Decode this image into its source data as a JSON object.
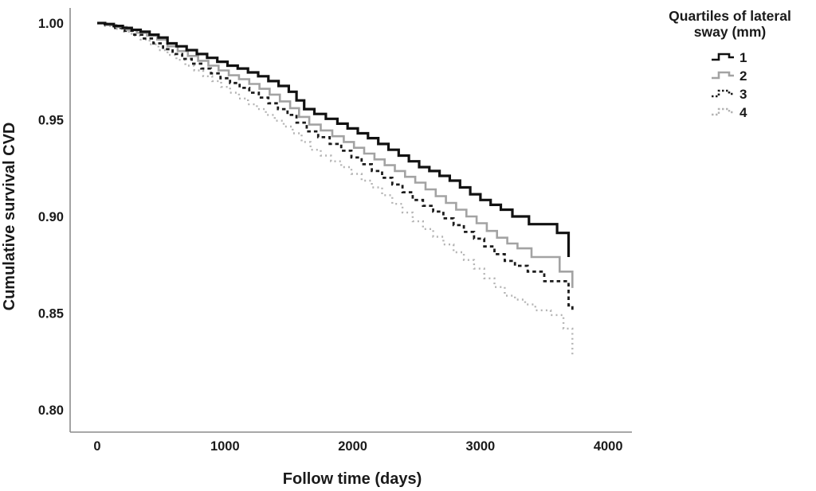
{
  "figure": {
    "background": "#ffffff",
    "text_color": "#1a1a1a",
    "axis_color": "#8c8c8c"
  },
  "chart_data": {
    "type": "line",
    "subtype": "kaplan-meier-step",
    "title": "",
    "xlabel": "Follow time (days)",
    "ylabel": "Cumulative survival CVD",
    "xlim": [
      -250,
      4200
    ],
    "ylim": [
      0.788,
      1.008
    ],
    "grid": false,
    "xticks": [
      0,
      1000,
      2000,
      3000,
      4000
    ],
    "xtick_labels": [
      "0",
      "1000",
      "2000",
      "3000",
      "4000"
    ],
    "yticks": [
      1.0,
      0.95,
      0.9,
      0.85,
      0.8
    ],
    "ytick_labels": [
      "1.00",
      "0.95",
      "0.90",
      "0.85",
      "0.80"
    ],
    "legend": {
      "title_line1": "Quartiles of lateral",
      "title_line2": "sway (mm)",
      "position": "top-right",
      "entries": [
        {
          "label": "1",
          "color": "#111111",
          "dash": "solid",
          "width": 3.2
        },
        {
          "label": "2",
          "color": "#a3a3a3",
          "dash": "solid",
          "width": 2.6
        },
        {
          "label": "3",
          "color": "#1c1c1c",
          "dash": "4.5 4",
          "width": 2.8
        },
        {
          "label": "4",
          "color": "#b4b4b4",
          "dash": "2 4.2",
          "width": 2.4
        }
      ]
    },
    "series": [
      {
        "name": "Quartile 1",
        "color": "#111111",
        "dash": "solid",
        "width": 3.2,
        "points": [
          [
            0,
            1.0
          ],
          [
            60,
            0.9995
          ],
          [
            130,
            0.9985
          ],
          [
            200,
            0.9975
          ],
          [
            270,
            0.9965
          ],
          [
            340,
            0.9955
          ],
          [
            410,
            0.994
          ],
          [
            480,
            0.9925
          ],
          [
            550,
            0.9895
          ],
          [
            620,
            0.988
          ],
          [
            700,
            0.986
          ],
          [
            780,
            0.984
          ],
          [
            860,
            0.982
          ],
          [
            940,
            0.98
          ],
          [
            1020,
            0.978
          ],
          [
            1100,
            0.9765
          ],
          [
            1180,
            0.9745
          ],
          [
            1260,
            0.9725
          ],
          [
            1340,
            0.97
          ],
          [
            1420,
            0.9675
          ],
          [
            1500,
            0.9645
          ],
          [
            1560,
            0.96
          ],
          [
            1620,
            0.9555
          ],
          [
            1700,
            0.953
          ],
          [
            1790,
            0.9505
          ],
          [
            1880,
            0.948
          ],
          [
            1960,
            0.9455
          ],
          [
            2040,
            0.943
          ],
          [
            2120,
            0.9405
          ],
          [
            2200,
            0.9375
          ],
          [
            2280,
            0.9345
          ],
          [
            2360,
            0.9315
          ],
          [
            2440,
            0.9285
          ],
          [
            2520,
            0.9255
          ],
          [
            2600,
            0.9235
          ],
          [
            2680,
            0.921
          ],
          [
            2760,
            0.9185
          ],
          [
            2840,
            0.915
          ],
          [
            2920,
            0.9115
          ],
          [
            3000,
            0.9085
          ],
          [
            3080,
            0.906
          ],
          [
            3160,
            0.9035
          ],
          [
            3250,
            0.9
          ],
          [
            3380,
            0.896
          ],
          [
            3600,
            0.8915
          ],
          [
            3690,
            0.879
          ]
        ]
      },
      {
        "name": "Quartile 2",
        "color": "#a3a3a3",
        "dash": "solid",
        "width": 2.6,
        "points": [
          [
            0,
            1.0
          ],
          [
            70,
            0.999
          ],
          [
            150,
            0.998
          ],
          [
            230,
            0.9965
          ],
          [
            310,
            0.995
          ],
          [
            390,
            0.9935
          ],
          [
            470,
            0.9915
          ],
          [
            550,
            0.988
          ],
          [
            630,
            0.9855
          ],
          [
            710,
            0.983
          ],
          [
            790,
            0.9805
          ],
          [
            870,
            0.978
          ],
          [
            950,
            0.9755
          ],
          [
            1030,
            0.973
          ],
          [
            1110,
            0.971
          ],
          [
            1190,
            0.9685
          ],
          [
            1270,
            0.966
          ],
          [
            1350,
            0.963
          ],
          [
            1430,
            0.9595
          ],
          [
            1510,
            0.956
          ],
          [
            1580,
            0.9515
          ],
          [
            1660,
            0.9475
          ],
          [
            1750,
            0.9445
          ],
          [
            1840,
            0.9415
          ],
          [
            1930,
            0.9385
          ],
          [
            2010,
            0.9355
          ],
          [
            2090,
            0.9325
          ],
          [
            2170,
            0.9295
          ],
          [
            2250,
            0.9265
          ],
          [
            2330,
            0.9235
          ],
          [
            2410,
            0.9205
          ],
          [
            2490,
            0.9175
          ],
          [
            2570,
            0.914
          ],
          [
            2650,
            0.9105
          ],
          [
            2730,
            0.907
          ],
          [
            2810,
            0.9035
          ],
          [
            2890,
            0.9
          ],
          [
            2970,
            0.8965
          ],
          [
            3050,
            0.8925
          ],
          [
            3130,
            0.889
          ],
          [
            3210,
            0.886
          ],
          [
            3290,
            0.8835
          ],
          [
            3400,
            0.879
          ],
          [
            3620,
            0.8715
          ],
          [
            3720,
            0.863
          ]
        ]
      },
      {
        "name": "Quartile 3",
        "color": "#1c1c1c",
        "dash": "4.5 4",
        "width": 2.8,
        "points": [
          [
            0,
            1.0
          ],
          [
            65,
            0.999
          ],
          [
            140,
            0.9975
          ],
          [
            215,
            0.996
          ],
          [
            290,
            0.994
          ],
          [
            365,
            0.992
          ],
          [
            440,
            0.9895
          ],
          [
            515,
            0.9865
          ],
          [
            590,
            0.984
          ],
          [
            665,
            0.9815
          ],
          [
            740,
            0.979
          ],
          [
            815,
            0.9765
          ],
          [
            890,
            0.974
          ],
          [
            965,
            0.9715
          ],
          [
            1040,
            0.969
          ],
          [
            1115,
            0.9665
          ],
          [
            1190,
            0.964
          ],
          [
            1265,
            0.9615
          ],
          [
            1340,
            0.9585
          ],
          [
            1415,
            0.9555
          ],
          [
            1490,
            0.9525
          ],
          [
            1560,
            0.9485
          ],
          [
            1640,
            0.944
          ],
          [
            1730,
            0.941
          ],
          [
            1820,
            0.9375
          ],
          [
            1910,
            0.934
          ],
          [
            1990,
            0.9305
          ],
          [
            2070,
            0.927
          ],
          [
            2150,
            0.9235
          ],
          [
            2230,
            0.92
          ],
          [
            2310,
            0.9165
          ],
          [
            2390,
            0.9125
          ],
          [
            2470,
            0.9085
          ],
          [
            2550,
            0.9055
          ],
          [
            2630,
            0.9025
          ],
          [
            2710,
            0.899
          ],
          [
            2790,
            0.8955
          ],
          [
            2870,
            0.892
          ],
          [
            2950,
            0.8885
          ],
          [
            3030,
            0.8845
          ],
          [
            3110,
            0.8805
          ],
          [
            3190,
            0.877
          ],
          [
            3270,
            0.8745
          ],
          [
            3370,
            0.8715
          ],
          [
            3500,
            0.8665
          ],
          [
            3690,
            0.854
          ],
          [
            3720,
            0.851
          ]
        ]
      },
      {
        "name": "Quartile 4",
        "color": "#b4b4b4",
        "dash": "2 4.2",
        "width": 2.4,
        "points": [
          [
            0,
            1.0
          ],
          [
            60,
            0.9985
          ],
          [
            130,
            0.997
          ],
          [
            200,
            0.9955
          ],
          [
            270,
            0.9935
          ],
          [
            340,
            0.9915
          ],
          [
            410,
            0.989
          ],
          [
            480,
            0.986
          ],
          [
            550,
            0.9835
          ],
          [
            620,
            0.981
          ],
          [
            690,
            0.978
          ],
          [
            760,
            0.9755
          ],
          [
            830,
            0.9725
          ],
          [
            900,
            0.97
          ],
          [
            970,
            0.967
          ],
          [
            1040,
            0.964
          ],
          [
            1110,
            0.961
          ],
          [
            1180,
            0.958
          ],
          [
            1250,
            0.9555
          ],
          [
            1320,
            0.9525
          ],
          [
            1390,
            0.9495
          ],
          [
            1460,
            0.9465
          ],
          [
            1530,
            0.943
          ],
          [
            1600,
            0.9385
          ],
          [
            1670,
            0.9345
          ],
          [
            1750,
            0.9315
          ],
          [
            1830,
            0.9285
          ],
          [
            1910,
            0.9255
          ],
          [
            1990,
            0.922
          ],
          [
            2070,
            0.9185
          ],
          [
            2150,
            0.915
          ],
          [
            2230,
            0.911
          ],
          [
            2310,
            0.9065
          ],
          [
            2390,
            0.902
          ],
          [
            2470,
            0.8975
          ],
          [
            2550,
            0.8935
          ],
          [
            2630,
            0.8895
          ],
          [
            2710,
            0.8855
          ],
          [
            2790,
            0.8815
          ],
          [
            2870,
            0.8775
          ],
          [
            2950,
            0.873
          ],
          [
            3030,
            0.868
          ],
          [
            3110,
            0.8635
          ],
          [
            3190,
            0.859
          ],
          [
            3270,
            0.857
          ],
          [
            3350,
            0.8545
          ],
          [
            3430,
            0.8515
          ],
          [
            3550,
            0.849
          ],
          [
            3650,
            0.842
          ],
          [
            3720,
            0.827
          ]
        ]
      }
    ]
  }
}
